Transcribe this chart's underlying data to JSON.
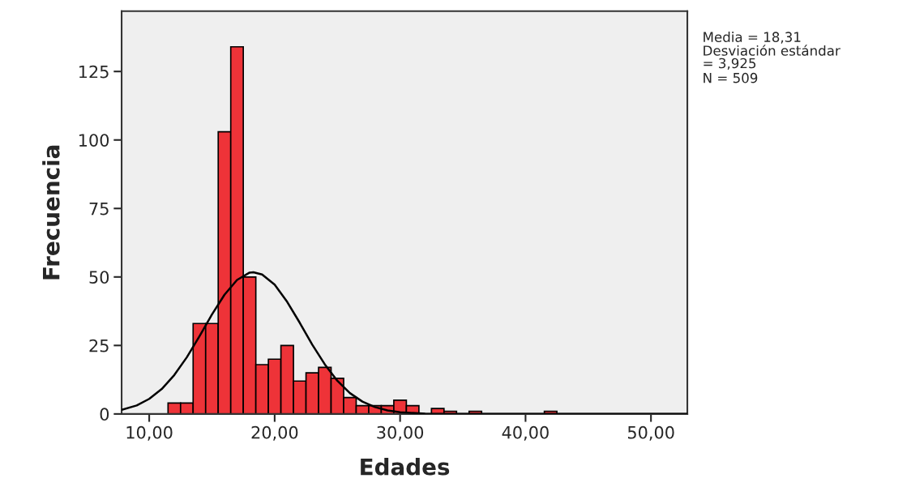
{
  "chart_data": {
    "type": "histogram",
    "xlabel": "Edades",
    "ylabel": "Frecuencia",
    "bins": [
      11.5,
      12.5,
      13.5,
      14.5,
      15.5,
      16.5,
      17.5,
      18.5,
      19.5,
      20.5,
      21.5,
      22.5,
      23.5,
      24.5,
      25.5,
      26.5,
      27.5,
      28.5,
      29.5,
      30.5,
      31.5,
      32.5,
      33.5,
      34.5,
      35.5,
      36.5,
      37.5,
      38.5,
      39.5,
      40.5,
      41.5,
      42.5
    ],
    "values": [
      4,
      4,
      33,
      33,
      103,
      134,
      50,
      18,
      20,
      25,
      12,
      15,
      17,
      13,
      6,
      3,
      3,
      3,
      5,
      3,
      0,
      2,
      1,
      0,
      1,
      0,
      0,
      0,
      0,
      0,
      1
    ],
    "color": "#ee3338",
    "series": [
      {
        "type": "line",
        "color": "#000000",
        "x": [
          7.8,
          9,
          10,
          11,
          12,
          13,
          14,
          15,
          16,
          17,
          18,
          18.31,
          19,
          20,
          21,
          22,
          23,
          24,
          25,
          26,
          27,
          28,
          29,
          30,
          32,
          35,
          40,
          45,
          52.9
        ],
        "values": [
          1.5,
          3.1,
          5.5,
          9.1,
          14.2,
          20.7,
          28.3,
          36.3,
          43.5,
          48.9,
          51.6,
          51.7,
          50.9,
          47.2,
          40.9,
          33.3,
          25.3,
          18.1,
          12.1,
          7.6,
          4.5,
          2.5,
          1.3,
          0.6,
          0.1,
          0,
          0,
          0,
          0
        ]
      }
    ],
    "xlim": [
      7.8,
      52.9
    ],
    "ylim": [
      0,
      147
    ],
    "xticks": [
      {
        "value": 10,
        "label": "10,00"
      },
      {
        "value": 20,
        "label": "20,00"
      },
      {
        "value": 30,
        "label": "30,00"
      },
      {
        "value": 40,
        "label": "40,00"
      },
      {
        "value": 50,
        "label": "50,00"
      }
    ],
    "yticks": [
      0,
      25,
      50,
      75,
      100,
      125
    ],
    "grid": false,
    "legend": false,
    "annotations": [
      "Media = 18,31",
      "Desviación estándar\n= 3,925",
      "N = 509"
    ]
  }
}
